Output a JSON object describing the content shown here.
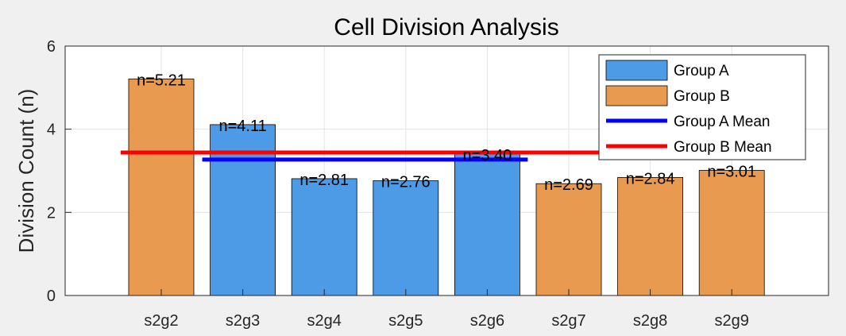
{
  "chart_data": {
    "type": "bar",
    "title": "Cell Division Analysis",
    "xlabel": "",
    "ylabel": "Division Count (n)",
    "ylim": [
      0,
      6
    ],
    "yticks": [
      0,
      2,
      4,
      6
    ],
    "grid": true,
    "legend_position": "top-right",
    "categories": [
      "s2g2",
      "s2g3",
      "s2g4",
      "s2g5",
      "s2g6",
      "s2g7",
      "s2g8",
      "s2g9"
    ],
    "values": [
      5.21,
      4.11,
      2.81,
      2.76,
      3.4,
      2.69,
      2.84,
      3.01
    ],
    "data_labels": [
      "n=5.21",
      "n=4.11",
      "n=2.81",
      "n=2.76",
      "n=3.40",
      "n=2.69",
      "n=2.84",
      "n=3.01"
    ],
    "groups": [
      "Group B",
      "Group A",
      "Group A",
      "Group A",
      "Group A",
      "Group B",
      "Group B",
      "Group B"
    ],
    "series": [
      {
        "name": "Group A",
        "color": "#4d9be6"
      },
      {
        "name": "Group B",
        "color": "#e89b50"
      }
    ],
    "mean_lines": [
      {
        "name": "Group A Mean",
        "value": 3.27,
        "color": "#0000ff",
        "from": "s2g3",
        "to": "s2g6"
      },
      {
        "name": "Group B Mean",
        "value": 3.44,
        "color": "#ff0000",
        "from": "s2g2",
        "to": "s2g9"
      }
    ]
  }
}
